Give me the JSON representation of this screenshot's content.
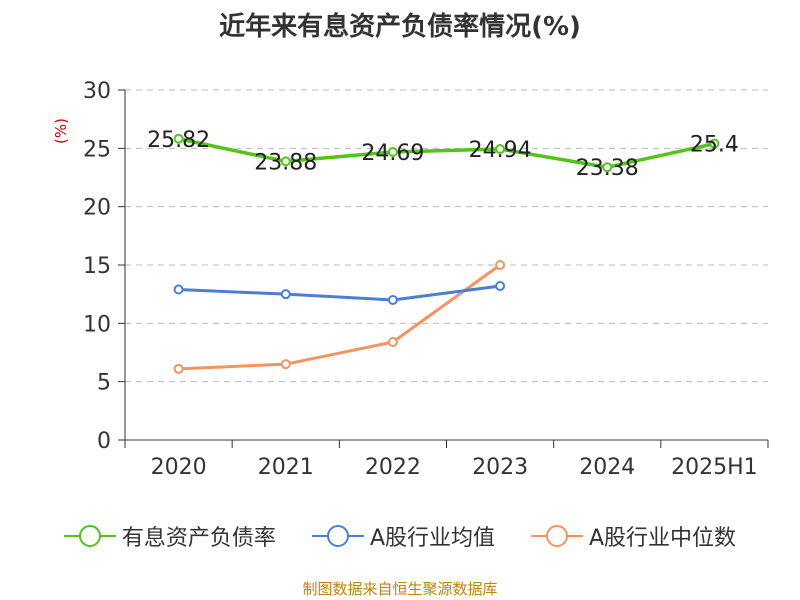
{
  "title": "近年来有息资产负债率情况(%)",
  "unit_label": "(%)",
  "source": "制图数据来自恒生聚源数据库",
  "chart_data": {
    "type": "line",
    "title": "近年来有息资产负债率情况(%)",
    "categories": [
      "2020",
      "2021",
      "2022",
      "2023",
      "2024",
      "2025H1"
    ],
    "ylim": [
      0,
      30
    ],
    "yticks": [
      0,
      5,
      10,
      15,
      20,
      25,
      30
    ],
    "grid": true,
    "legend_position": "bottom",
    "series": [
      {
        "name": "有息资产负债率",
        "color": "#52c41a",
        "values": [
          25.82,
          23.88,
          24.69,
          24.94,
          23.38,
          25.4
        ],
        "labels": [
          "25.82",
          "23.88",
          "24.69",
          "24.94",
          "23.38",
          "25.4"
        ]
      },
      {
        "name": "A股行业均值",
        "color": "#4a7fd4",
        "values": [
          12.9,
          12.5,
          12.0,
          13.2,
          null,
          null
        ]
      },
      {
        "name": "A股行业中位数",
        "color": "#f59460",
        "values": [
          6.1,
          6.5,
          8.4,
          15.0,
          null,
          null
        ]
      }
    ]
  }
}
